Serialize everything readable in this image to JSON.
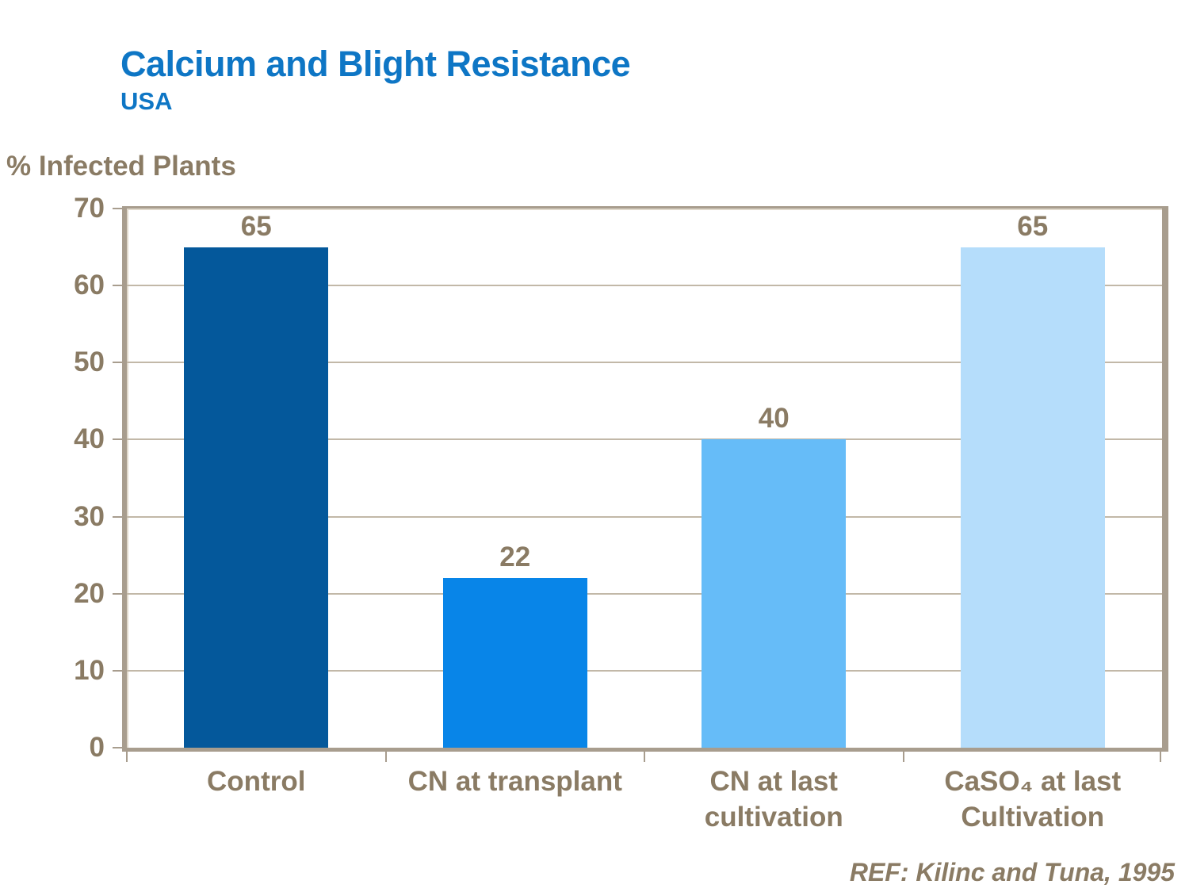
{
  "header": {
    "title": "Calcium and Blight Resistance",
    "subtitle": "USA"
  },
  "footer": {
    "reference": "REF: Kilinc and Tuna, 1995"
  },
  "chart_data": {
    "type": "bar",
    "title": "Calcium and Blight Resistance",
    "subtitle": "USA",
    "ylabel": "% Infected Plants",
    "xlabel": "",
    "categories": [
      "Control",
      "CN at transplant",
      "CN at last\ncultivation",
      "CaSO₄ at last\nCultivation"
    ],
    "values": [
      65,
      22,
      40,
      65
    ],
    "value_labels": [
      "65",
      "22",
      "40",
      "65"
    ],
    "bar_colors": [
      "#04589b",
      "#0885e8",
      "#66bcf8",
      "#b5ddfb"
    ],
    "ylim": [
      0,
      70
    ],
    "yticks": [
      0,
      10,
      20,
      30,
      40,
      50,
      60,
      70
    ],
    "grid": true,
    "legend": "none",
    "colors": {
      "title_blue": "#0e76c5",
      "text_brown": "#8a7b64",
      "grid_tan": "#c2b8a8",
      "frame_tan": "#a89d8e"
    }
  }
}
